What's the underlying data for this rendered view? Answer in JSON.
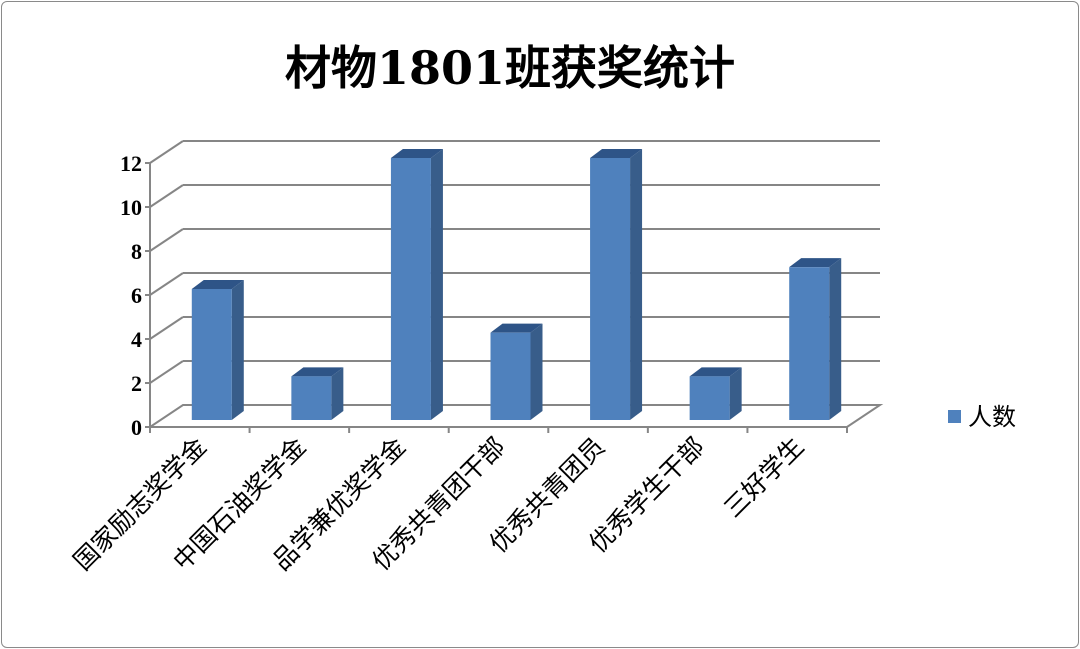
{
  "chart_data": {
    "type": "bar",
    "style": "3d-column",
    "title": "材物1801班获奖统计",
    "categories": [
      "国家励志奖学金",
      "中国石油奖学金",
      "品学兼优奖学金",
      "优秀共青团干部",
      "优秀共青团员",
      "优秀学生干部",
      "三好学生"
    ],
    "series": [
      {
        "name": "人数",
        "values": [
          6,
          2,
          12,
          4,
          12,
          2,
          7
        ]
      }
    ],
    "yticks": [
      "0",
      "2",
      "4",
      "6",
      "8",
      "10",
      "12"
    ],
    "ylim": [
      0,
      12
    ],
    "grid": true,
    "legend": "right",
    "colors": {
      "bar_front": "#4F81BD",
      "bar_side": "#385D8A",
      "bar_top": "#2E5487",
      "grid": "#868686"
    }
  }
}
